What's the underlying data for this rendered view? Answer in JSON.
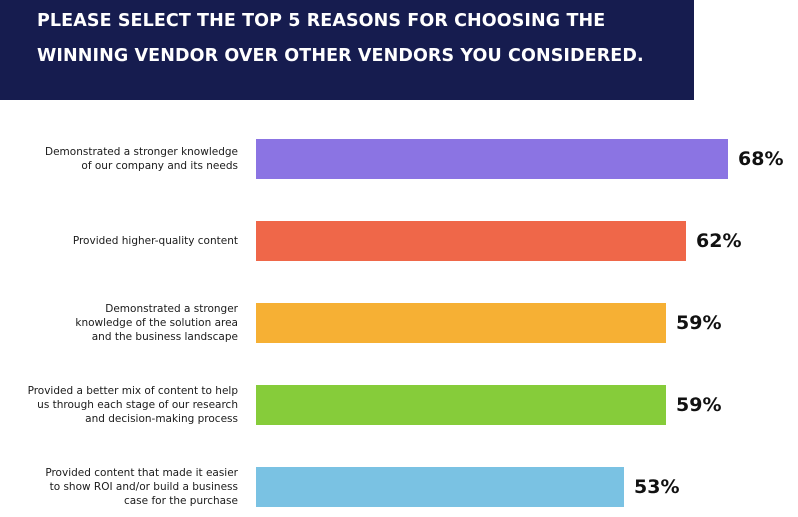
{
  "header": {
    "title_line1": "PLEASE SELECT THE TOP 5 REASONS FOR CHOOSING THE",
    "title_line2": "WINNING VENDOR OVER OTHER VENDORS YOU CONSIDERED."
  },
  "chart_data": {
    "type": "bar",
    "orientation": "horizontal",
    "title": "PLEASE SELECT THE TOP 5 REASONS FOR CHOOSING THE WINNING VENDOR OVER OTHER VENDORS YOU CONSIDERED.",
    "categories": [
      [
        "Demonstrated a stronger knowledge",
        "of our company and its needs"
      ],
      [
        "Provided higher-quality content"
      ],
      [
        "Demonstrated a stronger",
        "knowledge of the solution area",
        "and the business landscape"
      ],
      [
        "Provided a better mix of content to help",
        "us through each stage of our research",
        "and decision-making process"
      ],
      [
        "Provided content that made it easier",
        "to show ROI and/or build a business",
        "case for the purchase"
      ]
    ],
    "values": [
      68,
      62,
      59,
      59,
      53
    ],
    "value_labels": [
      "68%",
      "62%",
      "59%",
      "59%",
      "53%"
    ],
    "colors": [
      "#8b74e3",
      "#ef6749",
      "#f6b034",
      "#86cc3a",
      "#7ac2e3"
    ],
    "xlim": [
      0,
      68
    ],
    "grid": false,
    "legend": "none"
  }
}
